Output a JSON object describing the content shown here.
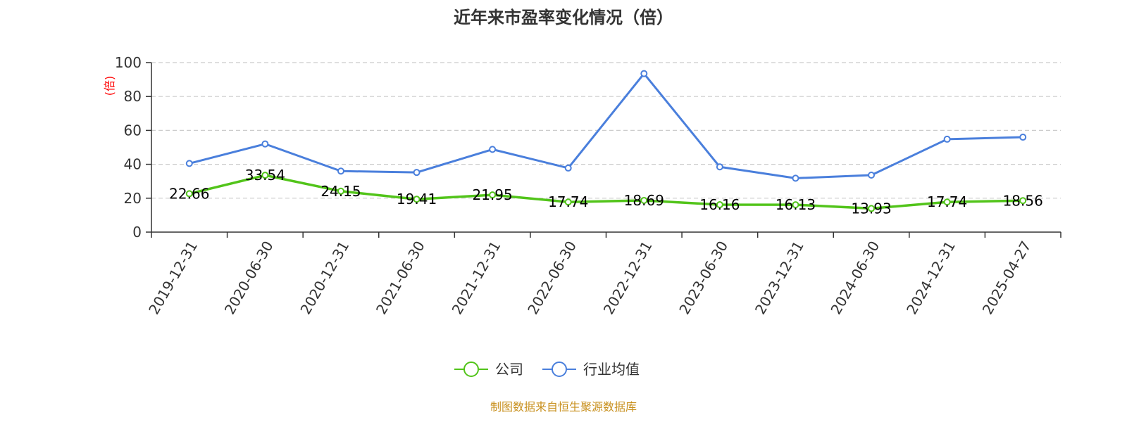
{
  "chart_data": {
    "type": "line",
    "title": "近年来市盈率变化情况（倍）",
    "ylabel": "(倍)",
    "xlabel": "",
    "ylim": [
      0,
      100
    ],
    "yticks": [
      0,
      20,
      40,
      60,
      80,
      100
    ],
    "grid": true,
    "legend_position": "bottom",
    "categories": [
      "2019-12-31",
      "2020-06-30",
      "2020-12-31",
      "2021-06-30",
      "2021-12-31",
      "2022-06-30",
      "2022-12-31",
      "2023-06-30",
      "2023-12-31",
      "2024-06-30",
      "2024-12-31",
      "2025-04-27"
    ],
    "series": [
      {
        "name": "公司",
        "color": "#52c41a",
        "values": [
          22.66,
          33.54,
          24.15,
          19.41,
          21.95,
          17.74,
          18.69,
          16.16,
          16.13,
          13.93,
          17.74,
          18.56
        ],
        "data_labels": [
          "22.66",
          "33.54",
          "24.15",
          "19.41",
          "21.95",
          "17.74",
          "18.69",
          "16.16",
          "16.13",
          "13.93",
          "17.74",
          "18.56"
        ]
      },
      {
        "name": "行业均值",
        "color": "#4a7fdc",
        "values": [
          40.5,
          52.0,
          36.0,
          35.2,
          48.8,
          37.8,
          93.5,
          38.5,
          31.8,
          33.6,
          54.8,
          56.0
        ]
      }
    ]
  },
  "footer": {
    "source": "制图数据来自恒生聚源数据库"
  }
}
